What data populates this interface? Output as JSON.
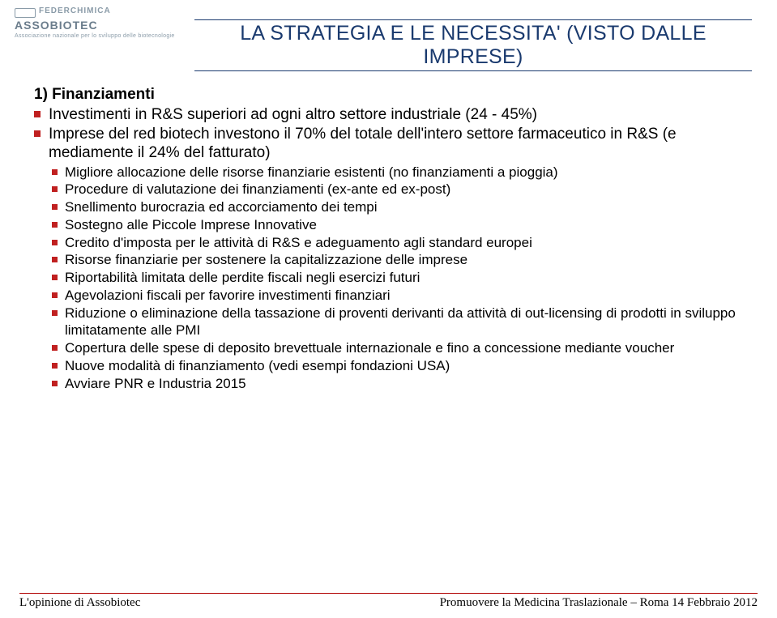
{
  "logo": {
    "line1": "FEDERCHIMICA",
    "line2": "ASSOBIOTEC",
    "line3": "Associazione nazionale per lo sviluppo delle biotecnologie"
  },
  "title": "LA STRATEGIA E LE NECESSITA' (VISTO DALLE IMPRESE)",
  "section_heading": "1) Finanziamenti",
  "level1_items": [
    "Investimenti in R&S superiori ad ogni altro settore industriale (24 - 45%)",
    "Imprese del red biotech investono il 70% del totale dell'intero settore farmaceutico in R&S (e mediamente il 24% del fatturato)"
  ],
  "level2_items": [
    "Migliore allocazione delle risorse finanziarie esistenti (no finanziamenti a pioggia)",
    "Procedure di valutazione dei finanziamenti (ex-ante ed ex-post)",
    "Snellimento burocrazia ed accorciamento dei tempi",
    "Sostegno alle Piccole Imprese Innovative",
    "Credito d'imposta per le attività di R&S e adeguamento agli standard europei",
    "Risorse finanziarie per sostenere la capitalizzazione delle imprese",
    "Riportabilità limitata delle perdite fiscali negli esercizi futuri",
    "Agevolazioni fiscali per favorire investimenti finanziari",
    "Riduzione o eliminazione della tassazione di proventi derivanti da attività di out-licensing di prodotti in sviluppo limitatamente alle PMI",
    "Copertura delle spese di deposito brevettuale internazionale e fino a concessione mediante voucher",
    "Nuove modalità di finanziamento (vedi esempi fondazioni USA)",
    "Avviare PNR e Industria 2015"
  ],
  "footer": {
    "left": "L'opinione di Assobiotec",
    "right": "Promuovere la Medicina Traslazionale – Roma 14 Febbraio 2012"
  },
  "colors": {
    "title_color": "#1a3a6e",
    "bullet_color": "#c02020",
    "footer_rule": "#b00000",
    "logo_gray": "#8a9ba8"
  }
}
